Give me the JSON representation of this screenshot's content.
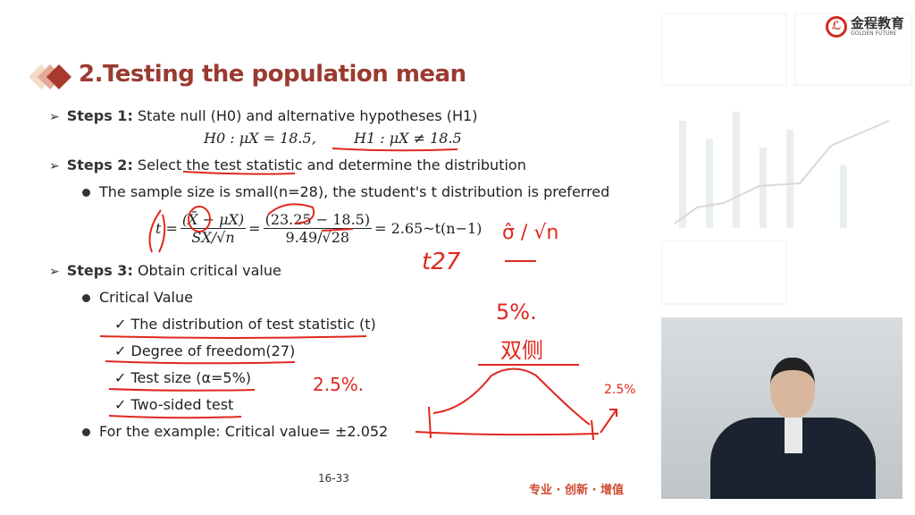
{
  "logo": {
    "text": "金程教育",
    "sub": "GOLDEN FUTURE"
  },
  "title": "2.Testing the population mean",
  "step1": {
    "label": "Steps 1:",
    "text": "State null (H0) and alternative hypotheses (H1)",
    "h0": "H0 : μX = 18.5,",
    "h1": "H1 : μX ≠ 18.5"
  },
  "step2": {
    "label": "Steps 2:",
    "text": "Select the test statistic and determine the distribution",
    "bullet": "The sample size is small(n=28), the student's t distribution is preferred",
    "formula": {
      "t": "t =",
      "num1": "(X̄ − μX)",
      "den1": "SX/√n",
      "eq": "=",
      "num2": "(23.25 − 18.5)",
      "den2": "9.49/√28",
      "result": "= 2.65~t(n−1)"
    }
  },
  "step3": {
    "label": "Steps 3:",
    "text": "Obtain critical value",
    "bullet": "Critical Value",
    "checks": [
      "✓ The distribution of test statistic (t)",
      "✓ Degree of freedom(27)",
      "✓ Test size (α=5%)",
      "✓ Two-sided test"
    ],
    "example": "For the example: Critical value= ±2.052"
  },
  "handwriting": {
    "t27": "t27",
    "sigma": "σ̂ / √n",
    "pct": "5%.",
    "twosided": "双侧",
    "half": "2.5%.",
    "tail": "2.5%"
  },
  "page": "16-33",
  "slogan": "专业 · 创新 · 增值",
  "colors": {
    "title": "#9a3b30",
    "ink": "#e0281e"
  }
}
